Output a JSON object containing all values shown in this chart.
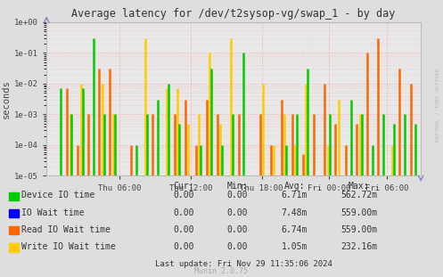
{
  "title": "Average latency for /dev/t2sysop-vg/swap_1 - by day",
  "ylabel": "seconds",
  "background_color": "#dedede",
  "plot_bg_color": "#e8e8e8",
  "grid_color": "#ff8888",
  "ylim_min": 1e-05,
  "ylim_max": 1.0,
  "watermark": "Munin 2.0.75",
  "side_label": "RRDTOOL / TOBI OETIKER",
  "legend_entries": [
    {
      "label": "Device IO time",
      "color": "#00cc00"
    },
    {
      "label": "IO Wait time",
      "color": "#0000ff"
    },
    {
      "label": "Read IO Wait time",
      "color": "#ff6600"
    },
    {
      "label": "Write IO Wait time",
      "color": "#ffcc00"
    }
  ],
  "stats_headers": [
    "Cur:",
    "Min:",
    "Avg:",
    "Max:"
  ],
  "stats_rows": [
    [
      "Device IO time",
      "0.00",
      "0.00",
      "6.71m",
      "562.72m"
    ],
    [
      "IO Wait time",
      "0.00",
      "0.00",
      "7.48m",
      "559.00m"
    ],
    [
      "Read IO Wait time",
      "0.00",
      "0.00",
      "6.74m",
      "559.00m"
    ],
    [
      "Write IO Wait time",
      "0.00",
      "0.00",
      "1.05m",
      "232.16m"
    ]
  ],
  "last_update": "Last update: Fri Nov 29 11:35:06 2024",
  "xtick_labels": [
    "Thu 06:00",
    "Thu 12:00",
    "Thu 18:00",
    "Fri 00:00",
    "Fri 06:00"
  ],
  "xtick_positions": [
    0.195,
    0.385,
    0.575,
    0.755,
    0.91
  ]
}
